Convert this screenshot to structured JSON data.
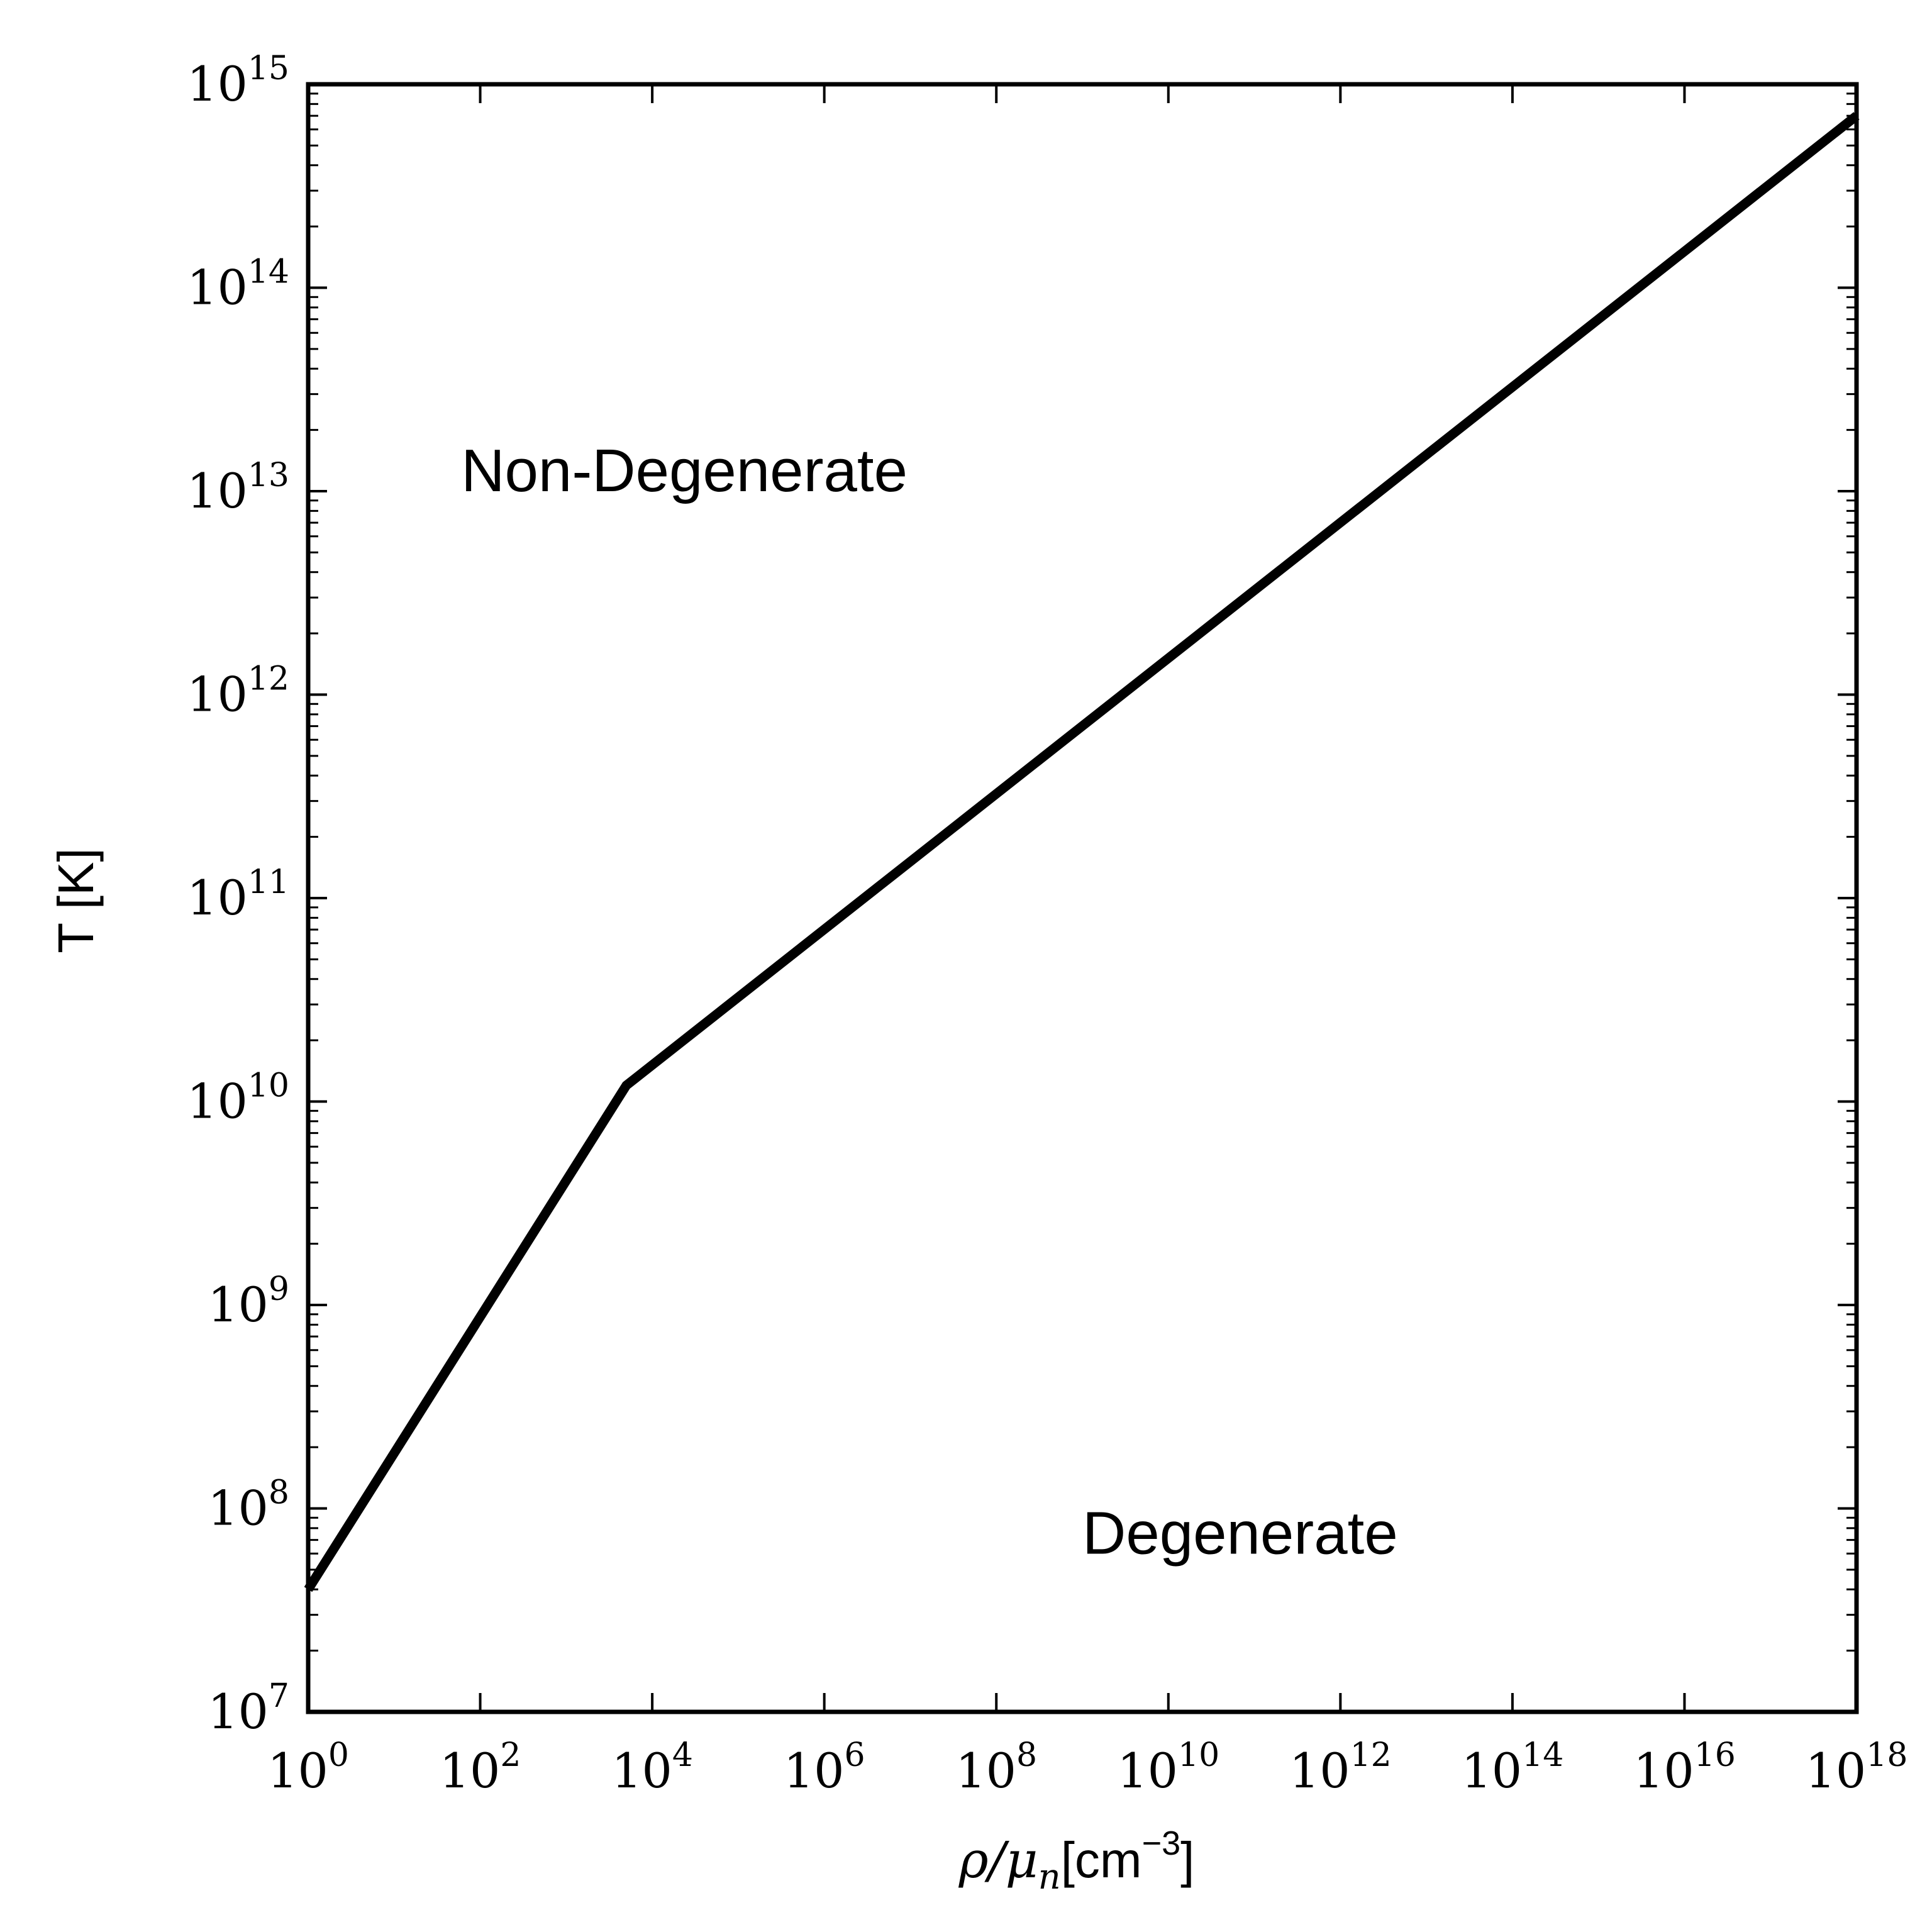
{
  "chart_data": {
    "type": "line",
    "title": "",
    "xlabel": {
      "symbol": "ρ/μ",
      "subscript": "n",
      "unit_prefix": "[cm",
      "unit_exponent": "−3",
      "unit_suffix": "]"
    },
    "ylabel": "T [K]",
    "xscale": "log",
    "yscale": "log",
    "xlim": [
      1,
      1e+18
    ],
    "ylim": [
      10000000.0,
      1000000000000000.0
    ],
    "x_ticks": [
      {
        "base": "10",
        "exp": "0",
        "value": 1
      },
      {
        "base": "10",
        "exp": "2",
        "value": 100.0
      },
      {
        "base": "10",
        "exp": "4",
        "value": 10000.0
      },
      {
        "base": "10",
        "exp": "6",
        "value": 1000000.0
      },
      {
        "base": "10",
        "exp": "8",
        "value": 100000000.0
      },
      {
        "base": "10",
        "exp": "10",
        "value": 10000000000.0
      },
      {
        "base": "10",
        "exp": "12",
        "value": 1000000000000.0
      },
      {
        "base": "10",
        "exp": "14",
        "value": 100000000000000.0
      },
      {
        "base": "10",
        "exp": "16",
        "value": 1e+16
      },
      {
        "base": "10",
        "exp": "18",
        "value": 1e+18
      }
    ],
    "y_ticks": [
      {
        "base": "10",
        "exp": "7",
        "value": 10000000.0
      },
      {
        "base": "10",
        "exp": "8",
        "value": 100000000.0
      },
      {
        "base": "10",
        "exp": "9",
        "value": 1000000000.0
      },
      {
        "base": "10",
        "exp": "10",
        "value": 10000000000.0
      },
      {
        "base": "10",
        "exp": "11",
        "value": 100000000000.0
      },
      {
        "base": "10",
        "exp": "12",
        "value": 1000000000000.0
      },
      {
        "base": "10",
        "exp": "13",
        "value": 10000000000000.0
      },
      {
        "base": "10",
        "exp": "14",
        "value": 100000000000000.0
      },
      {
        "base": "10",
        "exp": "15",
        "value": 1000000000000000.0
      }
    ],
    "series": [
      {
        "x": [
          1,
          5000.0,
          1e+18
        ],
        "y": [
          40000000.0,
          12000000000.0,
          700000000000000.0
        ],
        "color": "#000000"
      }
    ],
    "annotations": [
      {
        "text": "Non-Degenerate",
        "x": 60,
        "y": 10000000000000.0
      },
      {
        "text": "Degenerate",
        "x": 1000000000.0,
        "y": 60000000.0
      }
    ],
    "grid": false,
    "legend": "none"
  }
}
